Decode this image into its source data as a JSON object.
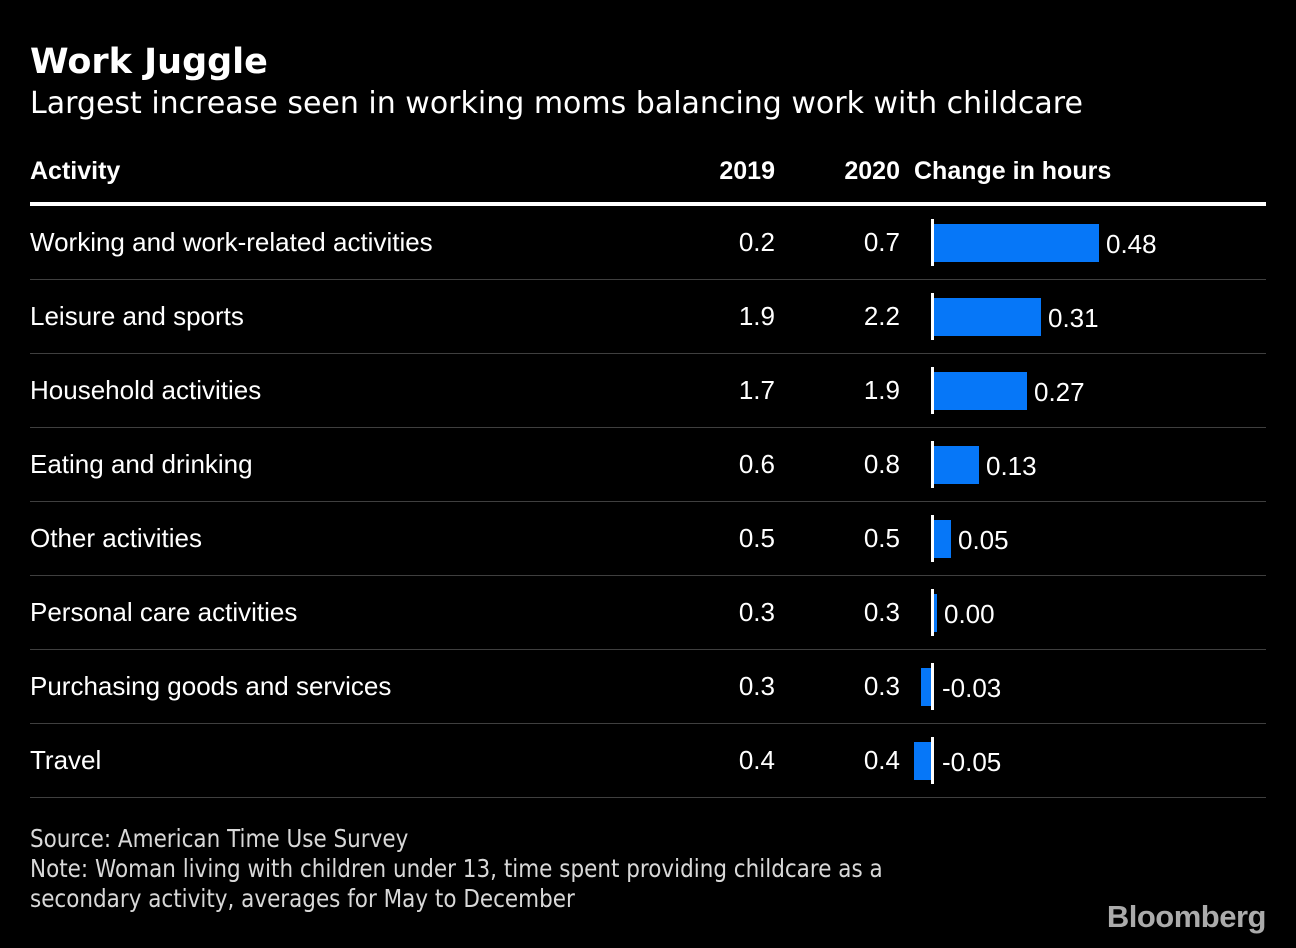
{
  "chart": {
    "title": "Work Juggle",
    "subtitle": "Largest increase seen in working moms balancing work with childcare",
    "columns": {
      "activity": "Activity",
      "y2019": "2019",
      "y2020": "2020",
      "change": "Change in hours"
    },
    "rows": [
      {
        "activity": "Working and work-related activities",
        "y2019": "0.2",
        "y2020": "0.7",
        "change": 0.48,
        "change_label": "0.48"
      },
      {
        "activity": "Leisure and sports",
        "y2019": "1.9",
        "y2020": "2.2",
        "change": 0.31,
        "change_label": "0.31"
      },
      {
        "activity": "Household activities",
        "y2019": "1.7",
        "y2020": "1.9",
        "change": 0.27,
        "change_label": "0.27"
      },
      {
        "activity": "Eating and drinking",
        "y2019": "0.6",
        "y2020": "0.8",
        "change": 0.13,
        "change_label": "0.13"
      },
      {
        "activity": "Other activities",
        "y2019": "0.5",
        "y2020": "0.5",
        "change": 0.05,
        "change_label": "0.05"
      },
      {
        "activity": "Personal care activities",
        "y2019": "0.3",
        "y2020": "0.3",
        "change": 0.0,
        "change_label": "0.00"
      },
      {
        "activity": "Purchasing goods and services",
        "y2019": "0.3",
        "y2020": "0.3",
        "change": -0.03,
        "change_label": "-0.03"
      },
      {
        "activity": "Travel",
        "y2019": "0.4",
        "y2020": "0.4",
        "change": -0.05,
        "change_label": "-0.05"
      }
    ],
    "footer": {
      "source": "Source: American Time Use Survey",
      "note_lines": [
        "Note: Woman living with children under 13, time spent providing childcare as a",
        "secondary activity, averages for May to December"
      ]
    },
    "logo": "Bloomberg",
    "colors": {
      "background": "#000000",
      "text": "#ffffff",
      "bar": "#0677f8",
      "separator": "#3f3f3f",
      "footer_text": "#d8d8d8",
      "logo": "#ababab",
      "header_rule": "#ffffff"
    }
  },
  "chart_data": {
    "type": "bar",
    "orientation": "horizontal",
    "title": "Work Juggle",
    "subtitle": "Largest increase seen in working moms balancing work with childcare",
    "categories": [
      "Working and work-related activities",
      "Leisure and sports",
      "Household activities",
      "Eating and drinking",
      "Other activities",
      "Personal care activities",
      "Purchasing goods and services",
      "Travel"
    ],
    "series": [
      {
        "name": "2019",
        "values": [
          0.2,
          1.9,
          1.7,
          0.6,
          0.5,
          0.3,
          0.3,
          0.4
        ]
      },
      {
        "name": "2020",
        "values": [
          0.7,
          2.2,
          1.9,
          0.8,
          0.5,
          0.3,
          0.3,
          0.4
        ]
      },
      {
        "name": "Change in hours",
        "values": [
          0.48,
          0.31,
          0.27,
          0.13,
          0.05,
          0.0,
          -0.03,
          -0.05
        ]
      }
    ],
    "bar_series": "Change in hours",
    "note": "Note: Woman living with children under 13, time spent providing childcare as a secondary activity, averages for May to December",
    "source": "Source: American Time Use Survey",
    "legend": "none",
    "grid": false,
    "zero_baseline": true
  }
}
